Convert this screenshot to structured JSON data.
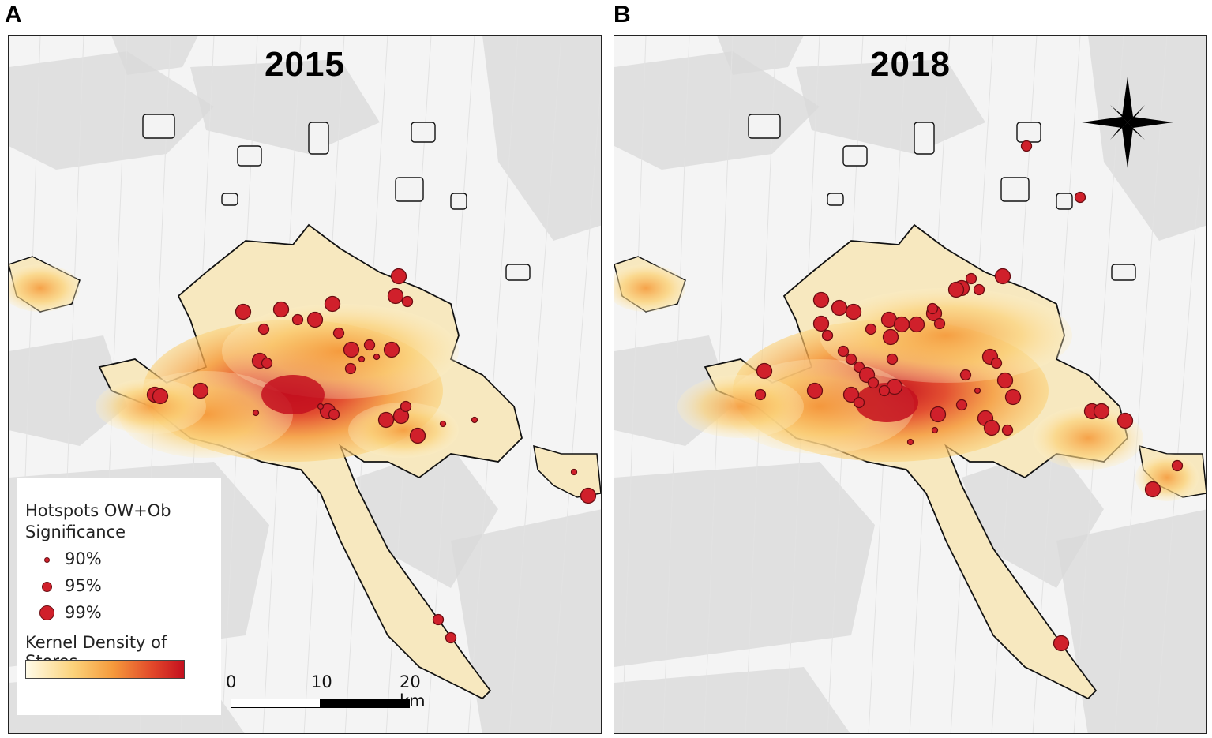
{
  "panels": [
    {
      "letter": "A",
      "year": "2015"
    },
    {
      "letter": "B",
      "year": "2018"
    }
  ],
  "legend": {
    "hotspot_title": "Hotspots OW+Ob Significance",
    "items": [
      {
        "label": "90%"
      },
      {
        "label": "95%"
      },
      {
        "label": "99%"
      }
    ],
    "kernel_title": "Kernel Density of Stores",
    "gradient_colors": [
      "#fffbe8",
      "#fbd27a",
      "#f59a3c",
      "#e2482a",
      "#c4101f"
    ]
  },
  "scale_bar": {
    "labels": [
      "0",
      "10",
      "20 km"
    ]
  },
  "north_arrow_icon": "compass-star-icon",
  "colors": {
    "hotspot_fill": "#d0202b",
    "hotspot_stroke": "#6a0d12",
    "boundary": "#111111",
    "background": "#f4f4f4",
    "terrain": "#d9d9d9"
  }
}
